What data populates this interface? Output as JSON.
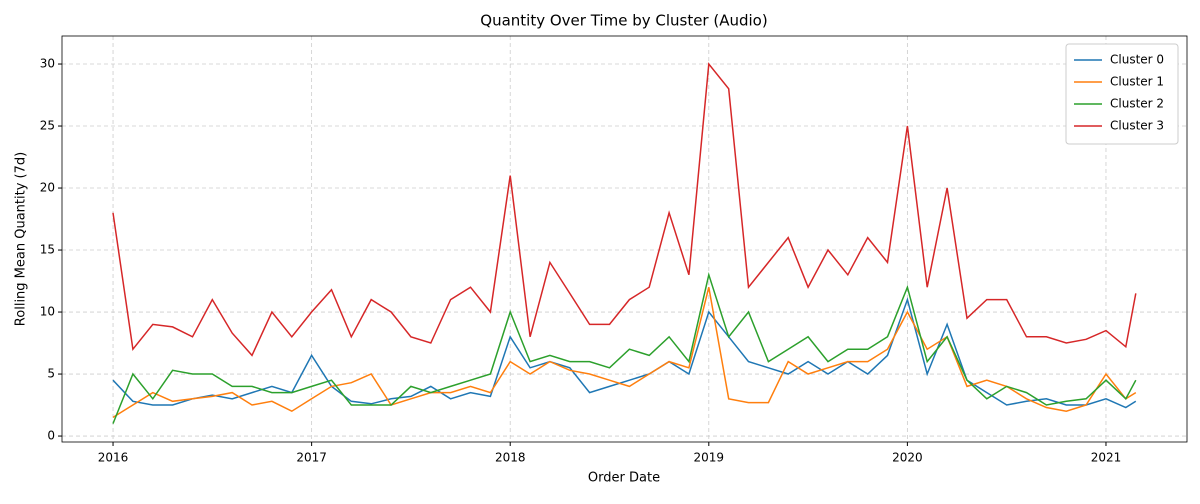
{
  "chart_data": {
    "type": "line",
    "title": "Quantity Over Time by Cluster (Audio)",
    "x_label": "Order Date",
    "y_label": "Rolling Mean Quantity (7d)",
    "x": [
      2016.0,
      2016.1,
      2016.2,
      2016.3,
      2016.4,
      2016.5,
      2016.6,
      2016.7,
      2016.8,
      2016.9,
      2017.0,
      2017.1,
      2017.2,
      2017.3,
      2017.4,
      2017.5,
      2017.6,
      2017.7,
      2017.8,
      2017.9,
      2018.0,
      2018.1,
      2018.2,
      2018.3,
      2018.4,
      2018.5,
      2018.6,
      2018.7,
      2018.8,
      2018.9,
      2019.0,
      2019.1,
      2019.2,
      2019.3,
      2019.4,
      2019.5,
      2019.6,
      2019.7,
      2019.8,
      2019.9,
      2020.0,
      2020.1,
      2020.2,
      2020.3,
      2020.4,
      2020.5,
      2020.6,
      2020.7,
      2020.8,
      2020.9,
      2021.0,
      2021.1,
      2021.15
    ],
    "series": [
      {
        "name": "Cluster 0",
        "color": "#1f77b4",
        "values": [
          4.5,
          2.8,
          2.5,
          2.5,
          3,
          3.3,
          3,
          3.5,
          4,
          3.5,
          6.5,
          4,
          2.8,
          2.6,
          3,
          3.2,
          4,
          3,
          3.5,
          3.2,
          8,
          5.5,
          6,
          5.5,
          3.5,
          4,
          4.5,
          5,
          6,
          5,
          10,
          8,
          6,
          5.5,
          5,
          6,
          5,
          6,
          5,
          6.5,
          11,
          5,
          9,
          4.5,
          3.5,
          2.5,
          2.8,
          3,
          2.5,
          2.5,
          3,
          2.3,
          2.8
        ]
      },
      {
        "name": "Cluster 1",
        "color": "#ff7f0e",
        "values": [
          1.5,
          2.5,
          3.5,
          2.8,
          3,
          3.2,
          3.5,
          2.5,
          2.8,
          2,
          3,
          4,
          4.3,
          5,
          2.5,
          3,
          3.5,
          3.5,
          4,
          3.5,
          6,
          5,
          6,
          5.3,
          5,
          4.5,
          4,
          5,
          6,
          5.5,
          12,
          3,
          2.7,
          2.7,
          6,
          5,
          5.5,
          6,
          6,
          7,
          10,
          7,
          8,
          4,
          4.5,
          4,
          3,
          2.3,
          2,
          2.5,
          5,
          3,
          3.5
        ]
      },
      {
        "name": "Cluster 2",
        "color": "#2ca02c",
        "values": [
          1,
          5,
          3,
          5.3,
          5,
          5,
          4,
          4,
          3.5,
          3.5,
          4,
          4.5,
          2.5,
          2.5,
          2.5,
          4,
          3.5,
          4,
          4.5,
          5,
          10,
          6,
          6.5,
          6,
          6,
          5.5,
          7,
          6.5,
          8,
          6,
          13,
          8,
          10,
          6,
          7,
          8,
          6,
          7,
          7,
          8,
          12,
          6,
          8,
          4.5,
          3,
          4,
          3.5,
          2.5,
          2.8,
          3,
          4.5,
          3,
          4.5
        ]
      },
      {
        "name": "Cluster 3",
        "color": "#d62728",
        "values": [
          18,
          7,
          9,
          8.8,
          8,
          11,
          8.3,
          6.5,
          10,
          8,
          10,
          11.8,
          8,
          11,
          10,
          8,
          7.5,
          11,
          12,
          10,
          21,
          8,
          14,
          11.5,
          9,
          9,
          11,
          12,
          18,
          13,
          30,
          28,
          12,
          14,
          16,
          12,
          15,
          13,
          16,
          14,
          25,
          12,
          20,
          9.5,
          11,
          11,
          8,
          8,
          7.5,
          7.8,
          8.5,
          7.2,
          11.5
        ]
      }
    ],
    "xlim": [
      2015.743,
      2021.408
    ],
    "xticks": [
      2016,
      2017,
      2018,
      2019,
      2020,
      2021
    ],
    "ylim": [
      -0.48,
      32.26
    ],
    "yticks": [
      0,
      5,
      10,
      15,
      20,
      25,
      30
    ],
    "grid": true,
    "legend": "upper right"
  }
}
